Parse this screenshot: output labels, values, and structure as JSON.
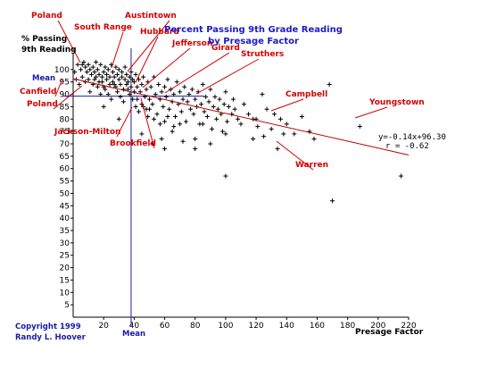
{
  "chart_data": {
    "type": "scatter",
    "title_line1": "Percent Passing 9th Grade Reading",
    "title_line2": "by Presage Factor",
    "ylabel_line1": "% Passing",
    "ylabel_line2": "9th Reading",
    "xlabel": "Presage Factor",
    "xlim": [
      0,
      220
    ],
    "ylim": [
      0,
      105
    ],
    "x_ticks": [
      "20",
      "40",
      "60",
      "80",
      "100",
      "120",
      "140",
      "160",
      "180",
      "200",
      "220"
    ],
    "y_ticks": [
      "5",
      "10",
      "15",
      "20",
      "25",
      "30",
      "35",
      "40",
      "45",
      "50",
      "55",
      "60",
      "65",
      "70",
      "75",
      "80",
      "85",
      "90",
      "95",
      "100"
    ],
    "grid": false,
    "mean_x": 38,
    "mean_y": 90,
    "mean_x_label": "Mean",
    "mean_y_label": "Mean",
    "trendline": {
      "slope": -0.14,
      "intercept": 96.3,
      "x_range": [
        0,
        220
      ]
    },
    "equation_text": "y=-0.14x+96.30",
    "r_text": "r = -0.62",
    "marker": "+",
    "points": [
      [
        3,
        102
      ],
      [
        5,
        100
      ],
      [
        6,
        97
      ],
      [
        7,
        103
      ],
      [
        8,
        101
      ],
      [
        9,
        99
      ],
      [
        10,
        96
      ],
      [
        10,
        102
      ],
      [
        11,
        100
      ],
      [
        12,
        98
      ],
      [
        13,
        94
      ],
      [
        13,
        101
      ],
      [
        14,
        99
      ],
      [
        15,
        97
      ],
      [
        15,
        103
      ],
      [
        16,
        100
      ],
      [
        17,
        95
      ],
      [
        17,
        98
      ],
      [
        18,
        102
      ],
      [
        19,
        97
      ],
      [
        20,
        93
      ],
      [
        20,
        99
      ],
      [
        21,
        101
      ],
      [
        22,
        96
      ],
      [
        22,
        98
      ],
      [
        23,
        100
      ],
      [
        24,
        94
      ],
      [
        24,
        97
      ],
      [
        25,
        102
      ],
      [
        26,
        99
      ],
      [
        26,
        95
      ],
      [
        27,
        97
      ],
      [
        28,
        101
      ],
      [
        28,
        93
      ],
      [
        29,
        98
      ],
      [
        30,
        96
      ],
      [
        30,
        100
      ],
      [
        31,
        94
      ],
      [
        32,
        97
      ],
      [
        32,
        99
      ],
      [
        33,
        92
      ],
      [
        34,
        96
      ],
      [
        34,
        101
      ],
      [
        35,
        98
      ],
      [
        35,
        94
      ],
      [
        36,
        95
      ],
      [
        37,
        97
      ],
      [
        37,
        90
      ],
      [
        38,
        99
      ],
      [
        38,
        93
      ],
      [
        39,
        96
      ],
      [
        40,
        91
      ],
      [
        40,
        95
      ],
      [
        41,
        98
      ],
      [
        42,
        93
      ],
      [
        42,
        88
      ],
      [
        43,
        96
      ],
      [
        44,
        91
      ],
      [
        45,
        94
      ],
      [
        45,
        86
      ],
      [
        46,
        97
      ],
      [
        47,
        89
      ],
      [
        48,
        92
      ],
      [
        48,
        84
      ],
      [
        49,
        95
      ],
      [
        50,
        88
      ],
      [
        51,
        93
      ],
      [
        52,
        86
      ],
      [
        53,
        97
      ],
      [
        54,
        90
      ],
      [
        55,
        82
      ],
      [
        56,
        94
      ],
      [
        57,
        88
      ],
      [
        58,
        91
      ],
      [
        59,
        85
      ],
      [
        60,
        93
      ],
      [
        60,
        79
      ],
      [
        61,
        89
      ],
      [
        62,
        96
      ],
      [
        63,
        84
      ],
      [
        64,
        92
      ],
      [
        65,
        87
      ],
      [
        66,
        90
      ],
      [
        67,
        81
      ],
      [
        68,
        95
      ],
      [
        69,
        86
      ],
      [
        70,
        91
      ],
      [
        71,
        83
      ],
      [
        72,
        88
      ],
      [
        73,
        93
      ],
      [
        74,
        79
      ],
      [
        75,
        87
      ],
      [
        76,
        90
      ],
      [
        77,
        84
      ],
      [
        78,
        92
      ],
      [
        79,
        82
      ],
      [
        80,
        88
      ],
      [
        81,
        85
      ],
      [
        82,
        91
      ],
      [
        83,
        78
      ],
      [
        84,
        86
      ],
      [
        85,
        94
      ],
      [
        86,
        83
      ],
      [
        87,
        89
      ],
      [
        88,
        81
      ],
      [
        89,
        87
      ],
      [
        90,
        92
      ],
      [
        91,
        76
      ],
      [
        92,
        85
      ],
      [
        93,
        89
      ],
      [
        94,
        80
      ],
      [
        95,
        84
      ],
      [
        96,
        88
      ],
      [
        97,
        82
      ],
      [
        98,
        75
      ],
      [
        99,
        86
      ],
      [
        100,
        91
      ],
      [
        101,
        79
      ],
      [
        102,
        85
      ],
      [
        104,
        82
      ],
      [
        105,
        88
      ],
      [
        106,
        84
      ],
      [
        108,
        80
      ],
      [
        110,
        78
      ],
      [
        112,
        86
      ],
      [
        115,
        82
      ],
      [
        118,
        80
      ],
      [
        120,
        80
      ],
      [
        121,
        77
      ],
      [
        124,
        90
      ],
      [
        127,
        84
      ],
      [
        130,
        76
      ],
      [
        132,
        82
      ],
      [
        134,
        68
      ],
      [
        136,
        80
      ],
      [
        138,
        74
      ],
      [
        140,
        78
      ],
      [
        145,
        74
      ],
      [
        150,
        81
      ],
      [
        155,
        75
      ],
      [
        158,
        72
      ],
      [
        168,
        94
      ],
      [
        170,
        47
      ],
      [
        188,
        77
      ],
      [
        65,
        75
      ],
      [
        72,
        71
      ],
      [
        58,
        72
      ],
      [
        30,
        80
      ],
      [
        20,
        85
      ],
      [
        45,
        74
      ],
      [
        52,
        70
      ],
      [
        60,
        68
      ],
      [
        80,
        72
      ],
      [
        85,
        78
      ],
      [
        90,
        70
      ],
      [
        100,
        74
      ],
      [
        100,
        57
      ],
      [
        118,
        72
      ],
      [
        125,
        73
      ],
      [
        80,
        68
      ],
      [
        215,
        57
      ],
      [
        1,
        99
      ],
      [
        2,
        96
      ],
      [
        4,
        94
      ],
      [
        6,
        102
      ],
      [
        8,
        95
      ],
      [
        11,
        91
      ],
      [
        14,
        96
      ],
      [
        16,
        93
      ],
      [
        18,
        90
      ],
      [
        19,
        95
      ],
      [
        21,
        92
      ],
      [
        23,
        90
      ],
      [
        25,
        88
      ],
      [
        27,
        94
      ],
      [
        29,
        91
      ],
      [
        31,
        89
      ],
      [
        33,
        87
      ],
      [
        36,
        92
      ],
      [
        39,
        88
      ],
      [
        41,
        85
      ],
      [
        43,
        83
      ],
      [
        46,
        85
      ],
      [
        49,
        81
      ],
      [
        50,
        84
      ],
      [
        53,
        80
      ],
      [
        57,
        78
      ],
      [
        62,
        81
      ],
      [
        66,
        77
      ],
      [
        70,
        78
      ]
    ],
    "annotations": [
      {
        "text": "Poland"
      },
      {
        "text": "South Range"
      },
      {
        "text": "Austintown"
      },
      {
        "text": "Hubbard"
      },
      {
        "text": "Jefferson"
      },
      {
        "text": "Girard"
      },
      {
        "text": "Struthers"
      },
      {
        "text": "Campbell"
      },
      {
        "text": "Youngstown"
      },
      {
        "text": "Warren"
      },
      {
        "text": "Canfield"
      },
      {
        "text": "Poland"
      },
      {
        "text": "Jackson-Milton"
      },
      {
        "text": "Brookfield"
      }
    ]
  },
  "copyright_line1": "Copyright 1999",
  "copyright_line2": "Randy L. Hoover",
  "colors": {
    "points": "#000000",
    "trendline": "#c00000",
    "mean_lines": "#1a1aa6",
    "annotation": "#d40000",
    "title": "#1a1acc"
  }
}
